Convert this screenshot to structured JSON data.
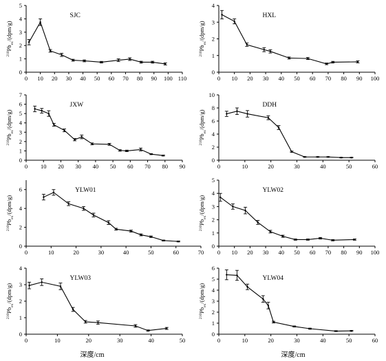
{
  "figure": {
    "xlabel_left": "深度/cm",
    "xlabel_right": "深度/cm"
  },
  "chart_data": [
    {
      "type": "line",
      "title": "SJC",
      "ylabel_main": "Pb",
      "ylabel_sup": "210",
      "ylabel_sub": "ex",
      "ylabel_unit": "/(dpm/g)",
      "xlim": [
        0,
        110
      ],
      "ylim": [
        0,
        5
      ],
      "xticks": [
        "0",
        "10",
        "20",
        "30",
        "40",
        "50",
        "60",
        "70",
        "80",
        "90",
        "100",
        "110"
      ],
      "yticks": [
        "0",
        "1",
        "2",
        "3",
        "4",
        "5"
      ],
      "x": [
        2,
        10,
        17,
        25,
        33,
        41,
        53,
        65,
        73,
        81,
        89,
        98
      ],
      "y": [
        2.25,
        3.75,
        1.6,
        1.3,
        0.9,
        0.85,
        0.75,
        0.9,
        0.98,
        0.75,
        0.75,
        0.62
      ],
      "err": [
        0.2,
        0.25,
        0.1,
        0.12,
        0.07,
        0.07,
        0.06,
        0.1,
        0.1,
        0.07,
        0.07,
        0.08
      ]
    },
    {
      "type": "line",
      "title": "HXL",
      "ylabel_main": "Pb",
      "ylabel_sup": "210",
      "ylabel_sub": "ex",
      "ylabel_unit": "/(dpm/g)",
      "xlim": [
        0,
        100
      ],
      "ylim": [
        0,
        4
      ],
      "xticks": [
        "0",
        "10",
        "20",
        "30",
        "40",
        "50",
        "60",
        "70",
        "80",
        "90",
        "100"
      ],
      "yticks": [
        "0",
        "1",
        "2",
        "3",
        "4"
      ],
      "x": [
        2,
        10,
        18,
        29,
        33,
        45,
        57,
        69,
        73,
        89
      ],
      "y": [
        3.45,
        3.05,
        1.65,
        1.35,
        1.25,
        0.85,
        0.82,
        0.5,
        0.6,
        0.62
      ],
      "err": [
        0.25,
        0.15,
        0.1,
        0.12,
        0.1,
        0.06,
        0.06,
        0.05,
        0.05,
        0.06
      ]
    },
    {
      "type": "line",
      "title": "JXW",
      "ylabel_main": "Pb",
      "ylabel_sup": "210",
      "ylabel_sub": "ex",
      "ylabel_unit": "/(dpm/g)",
      "xlim": [
        0,
        90
      ],
      "ylim": [
        0,
        7
      ],
      "xticks": [
        "0",
        "10",
        "20",
        "30",
        "40",
        "50",
        "60",
        "70",
        "80",
        "90"
      ],
      "yticks": [
        "0",
        "1",
        "2",
        "3",
        "4",
        "5",
        "6",
        "7"
      ],
      "x": [
        5,
        9,
        13,
        16,
        22,
        28,
        32,
        38,
        48,
        54,
        58,
        66,
        72,
        79
      ],
      "y": [
        5.5,
        5.3,
        5.0,
        3.8,
        3.2,
        2.2,
        2.5,
        1.75,
        1.7,
        1.05,
        1.0,
        1.15,
        0.65,
        0.5
      ],
      "err": [
        0.3,
        0.25,
        0.3,
        0.15,
        0.15,
        0.12,
        0.2,
        0.1,
        0.1,
        0.08,
        0.08,
        0.15,
        0.05,
        0.05
      ]
    },
    {
      "type": "line",
      "title": "DDH",
      "ylabel_main": "Pb",
      "ylabel_sup": "210",
      "ylabel_sub": "ex",
      "ylabel_unit": "/(dpm/g)",
      "xlim": [
        0,
        60
      ],
      "ylim": [
        0,
        10
      ],
      "xticks": [
        "0",
        "10",
        "20",
        "30",
        "40",
        "50",
        "60"
      ],
      "yticks": [
        "0",
        "2",
        "4",
        "6",
        "8",
        "10"
      ],
      "x": [
        3,
        7,
        11,
        19,
        23,
        28,
        33,
        38,
        42,
        47,
        51
      ],
      "y": [
        7.1,
        7.5,
        7.1,
        6.5,
        5.0,
        1.3,
        0.5,
        0.5,
        0.5,
        0.4,
        0.4
      ],
      "err": [
        0.4,
        0.5,
        0.5,
        0.3,
        0.3,
        0.1,
        0.05,
        0.05,
        0.05,
        0.05,
        0.05
      ]
    },
    {
      "type": "line",
      "title": "YLW01",
      "ylabel_main": "Pb",
      "ylabel_sup": "210",
      "ylabel_sub": "ex",
      "ylabel_unit": "/(dpm/g)",
      "xlim": [
        0,
        70
      ],
      "ylim": [
        0,
        7
      ],
      "xticks": [
        "0",
        "10",
        "20",
        "30",
        "40",
        "50",
        "60",
        "70"
      ],
      "yticks": [
        "0",
        "2",
        "4",
        "6"
      ],
      "x": [
        7,
        11,
        17,
        23,
        27,
        33,
        36,
        42,
        46,
        50,
        55,
        61
      ],
      "y": [
        5.2,
        5.7,
        4.5,
        4.0,
        3.3,
        2.5,
        1.8,
        1.6,
        1.2,
        1.0,
        0.6,
        0.5
      ],
      "err": [
        0.3,
        0.3,
        0.2,
        0.2,
        0.2,
        0.2,
        0.1,
        0.1,
        0.1,
        0.08,
        0.05,
        0.05
      ]
    },
    {
      "type": "line",
      "title": "YLW02",
      "ylabel_main": "Pb",
      "ylabel_sup": "210",
      "ylabel_sub": "ex",
      "ylabel_unit": "/(dpm/g)",
      "xlim": [
        0,
        100
      ],
      "ylim": [
        0,
        5
      ],
      "xticks": [
        "0",
        "10",
        "20",
        "30",
        "40",
        "50",
        "60",
        "70",
        "80",
        "90",
        "100"
      ],
      "yticks": [
        "0",
        "1",
        "2",
        "3",
        "4",
        "5"
      ],
      "x": [
        1,
        9,
        17,
        25,
        33,
        41,
        49,
        57,
        65,
        73,
        87
      ],
      "y": [
        3.7,
        3.0,
        2.7,
        1.8,
        1.1,
        0.75,
        0.5,
        0.5,
        0.6,
        0.45,
        0.5
      ],
      "err": [
        0.3,
        0.2,
        0.25,
        0.15,
        0.1,
        0.08,
        0.05,
        0.05,
        0.06,
        0.05,
        0.05
      ]
    },
    {
      "type": "line",
      "title": "YLW03",
      "ylabel_main": "Pb",
      "ylabel_sup": "210",
      "ylabel_sub": "ex",
      "ylabel_unit": "/(dpm/g)",
      "xlim": [
        0,
        50
      ],
      "ylim": [
        0,
        4
      ],
      "xticks": [
        "0",
        "10",
        "20",
        "30",
        "40",
        "50"
      ],
      "yticks": [
        "0",
        "1",
        "2",
        "3",
        "4"
      ],
      "x": [
        1,
        5,
        11,
        15,
        19,
        23,
        35,
        39,
        45
      ],
      "y": [
        2.95,
        3.15,
        2.9,
        1.5,
        0.75,
        0.7,
        0.5,
        0.22,
        0.35
      ],
      "err": [
        0.2,
        0.2,
        0.2,
        0.12,
        0.08,
        0.1,
        0.08,
        0.04,
        0.06
      ]
    },
    {
      "type": "line",
      "title": "YLW04",
      "ylabel_main": "Pb",
      "ylabel_sup": "210",
      "ylabel_sub": "ex",
      "ylabel_unit": "/(dpm/g)",
      "xlim": [
        0,
        60
      ],
      "ylim": [
        0,
        6
      ],
      "xticks": [
        "0",
        "10",
        "20",
        "30",
        "40",
        "50",
        "60"
      ],
      "yticks": [
        "0",
        "1",
        "2",
        "3",
        "4",
        "5",
        "6"
      ],
      "x": [
        3,
        7,
        11,
        17,
        19,
        21,
        29,
        35,
        45,
        51
      ],
      "y": [
        5.4,
        5.35,
        4.3,
        3.2,
        2.6,
        1.1,
        0.7,
        0.5,
        0.28,
        0.3
      ],
      "err": [
        0.45,
        0.45,
        0.25,
        0.3,
        0.3,
        0.08,
        0.05,
        0.05,
        0.04,
        0.04
      ]
    }
  ]
}
